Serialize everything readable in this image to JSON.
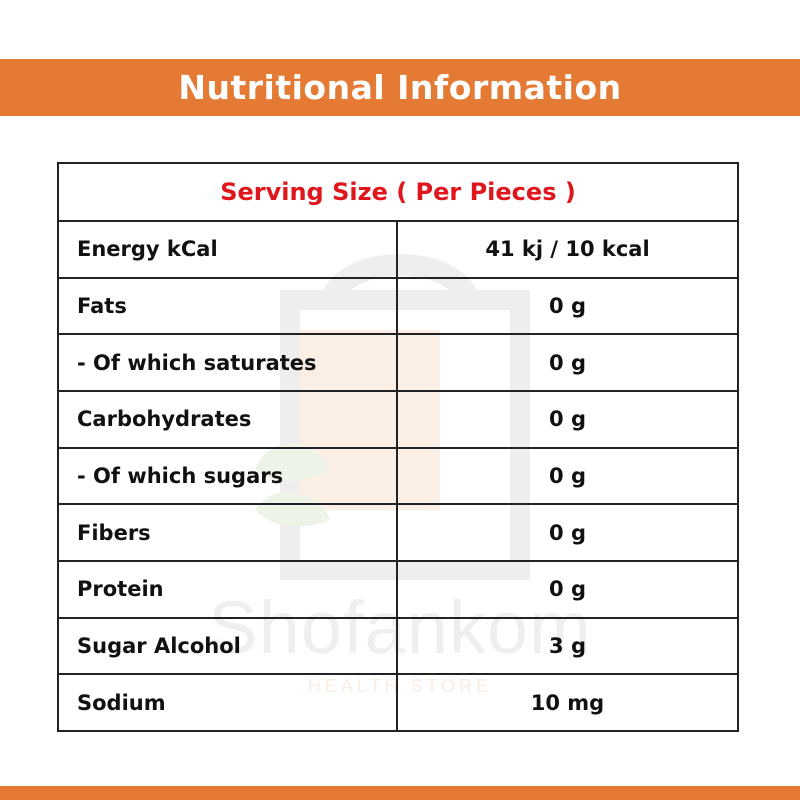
{
  "header": {
    "title": "Nutritional Information"
  },
  "colors": {
    "accent": "#e47a34",
    "serving_text": "#e0161d",
    "border": "#222222",
    "text": "#111111"
  },
  "watermark": {
    "brand": "Shofankom",
    "tagline": "HEALTH STORE"
  },
  "table": {
    "serving_size": "Serving Size ( Per Pieces )",
    "rows": [
      {
        "name": "Energy kCal",
        "value": "41 kj / 10 kcal"
      },
      {
        "name": "Fats",
        "value": "0 g"
      },
      {
        "name": "- Of which saturates",
        "value": "0 g"
      },
      {
        "name": "Carbohydrates",
        "value": "0 g"
      },
      {
        "name": "- Of which sugars",
        "value": "0 g"
      },
      {
        "name": "Fibers",
        "value": "0 g"
      },
      {
        "name": "Protein",
        "value": "0 g"
      },
      {
        "name": "Sugar Alcohol",
        "value": "3 g"
      },
      {
        "name": "Sodium",
        "value": "10 mg"
      }
    ]
  }
}
